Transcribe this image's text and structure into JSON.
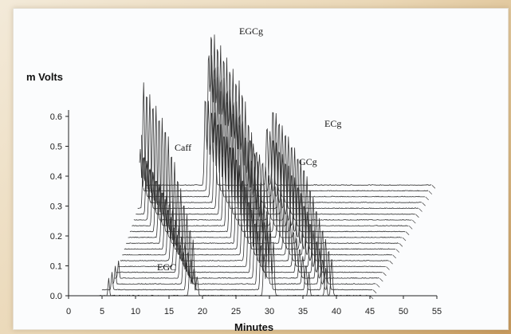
{
  "chart_data": {
    "type": "line",
    "subtype": "stacked-chromatogram-3d",
    "ylabel": "m Volts",
    "xlabel": "Minutes",
    "xlim": [
      0,
      55
    ],
    "ylim": [
      0.0,
      0.6
    ],
    "x_ticks": [
      "0",
      "5",
      "10",
      "15",
      "20",
      "25",
      "30",
      "35",
      "40",
      "45",
      "50",
      "55"
    ],
    "y_ticks": [
      "0.0",
      "0.1",
      "0.2",
      "0.3",
      "0.4",
      "0.5",
      "0.6"
    ],
    "trace_count": 20,
    "peaks": [
      {
        "label": "EGC",
        "time": 19.0,
        "height": 0.12
      },
      {
        "label": "Caff",
        "time": 18.6,
        "height": 0.49
      },
      {
        "label": "EGCg",
        "time": 30.0,
        "height": 0.6
      },
      {
        "label": "GCg",
        "time": 36.0,
        "height": 0.22
      },
      {
        "label": "ECg",
        "time": 39.5,
        "height": 0.34
      }
    ],
    "grid": false,
    "legend": "none"
  }
}
